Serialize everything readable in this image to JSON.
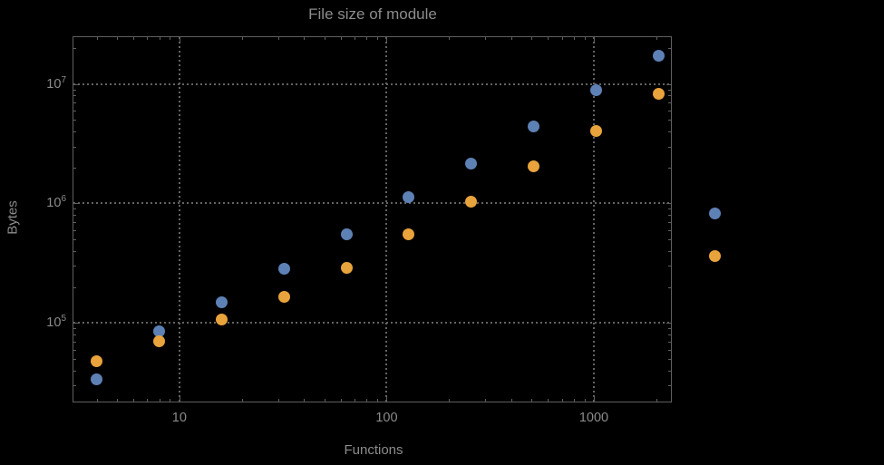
{
  "chart_data": {
    "type": "scatter",
    "title": "File size of module",
    "xlabel": "Functions",
    "ylabel": "Bytes",
    "x_scale": "log",
    "y_scale": "log",
    "xlim": [
      3.08,
      2355
    ],
    "ylim": [
      22000,
      24600000
    ],
    "grid": true,
    "legend": "none",
    "plot_range_clipping": false,
    "marker_size": 13,
    "x_ticks": {
      "values": [
        10,
        100,
        1000
      ],
      "labels": [
        "10",
        "100",
        "1000"
      ]
    },
    "y_ticks": {
      "values": [
        100000,
        1000000,
        10000000
      ],
      "base": "10",
      "exponents": [
        "5",
        "6",
        "7"
      ]
    },
    "series": [
      {
        "name": "blue",
        "color": "#5E81B5",
        "marker": "circle",
        "points": [
          [
            4,
            34000
          ],
          [
            8,
            85000
          ],
          [
            16,
            150000
          ],
          [
            32,
            282000
          ],
          [
            64,
            548000
          ],
          [
            128,
            1120000
          ],
          [
            256,
            2170000
          ],
          [
            512,
            4370000
          ],
          [
            1024,
            8800000
          ],
          [
            2048,
            17300000
          ],
          [
            3850,
            830000
          ]
        ]
      },
      {
        "name": "orange",
        "color": "#E8A33C",
        "marker": "circle",
        "points": [
          [
            4,
            48000
          ],
          [
            8,
            70000
          ],
          [
            16,
            106000
          ],
          [
            32,
            164000
          ],
          [
            64,
            287000
          ],
          [
            128,
            548000
          ],
          [
            256,
            1040000
          ],
          [
            512,
            2060000
          ],
          [
            1024,
            4070000
          ],
          [
            2048,
            8200000
          ],
          [
            3850,
            360000
          ]
        ]
      }
    ]
  },
  "colors": {
    "background": "#000000",
    "frame": "#5f5f5f",
    "gridline": "#636363",
    "text": "#8c8c8c"
  }
}
